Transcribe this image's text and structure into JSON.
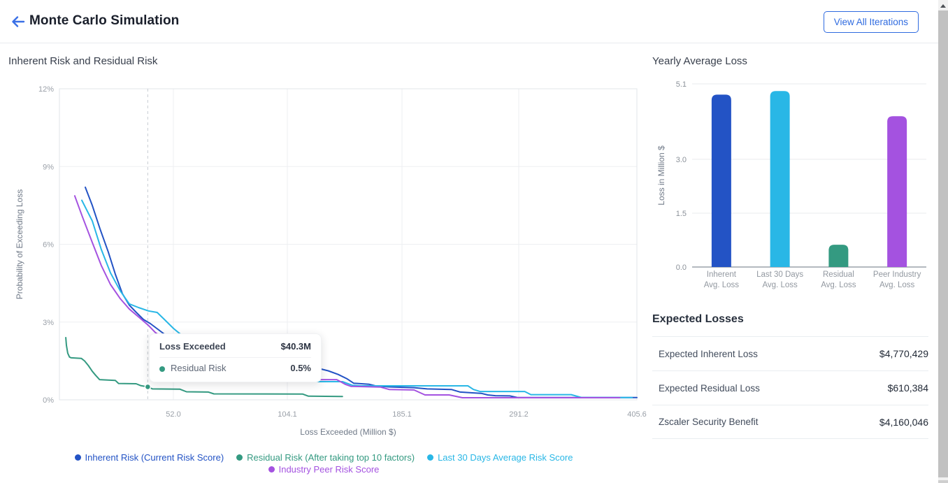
{
  "header": {
    "title": "Monte Carlo Simulation",
    "back_icon": "left-arrow-icon",
    "view_all_label": "View All Iterations"
  },
  "left_panel": {
    "title": "Inherent Risk and Residual Risk",
    "tooltip": {
      "title": "Loss Exceeded",
      "value": "$40.3M",
      "series_label": "Residual Risk",
      "series_value": "0.5%",
      "loss_million": 40.3,
      "probability_pct": 0.5
    }
  },
  "right_panel": {
    "bar_title": "Yearly Average Loss",
    "expected": {
      "title": "Expected Losses",
      "rows": [
        {
          "label": "Expected Inherent Loss",
          "value": "$4,770,429"
        },
        {
          "label": "Expected Residual Loss",
          "value": "$610,384"
        },
        {
          "label": "Zscaler Security Benefit",
          "value": "$4,160,046"
        }
      ]
    }
  },
  "colors": {
    "inherent": "#2353c5",
    "residual": "#349a81",
    "last30": "#29b7e6",
    "peer": "#a452e0",
    "accent_blue": "#2f6be0"
  },
  "chart_data": [
    {
      "type": "line",
      "title": "Inherent Risk and Residual Risk",
      "xlabel": "Loss Exceeded (Million $)",
      "ylabel": "Probability of Exceeding Loss",
      "x_ticks": [
        "52.0",
        "104.1",
        "185.1",
        "291.2",
        "405.6"
      ],
      "x_tick_values": [
        52.0,
        104.1,
        185.1,
        291.2,
        405.6
      ],
      "y_ticks": [
        "0%",
        "3%",
        "6%",
        "9%",
        "12%"
      ],
      "y_tick_values": [
        0,
        3,
        6,
        9,
        12
      ],
      "ylim": [
        0,
        12
      ],
      "grid": true,
      "legend_position": "bottom",
      "annotation": {
        "dashed_x": 40.3,
        "marker_x": 40.3,
        "marker_y": 0.5
      },
      "series": [
        {
          "name": "Inherent Risk (Current Risk Score)",
          "color": "#2353c5",
          "points": [
            [
              11.8,
              8.2
            ],
            [
              15,
              7.5
            ],
            [
              18.5,
              6.6
            ],
            [
              22.3,
              5.7
            ],
            [
              25.5,
              4.85
            ],
            [
              28.7,
              4.1
            ],
            [
              31.9,
              3.65
            ],
            [
              35.1,
              3.37
            ],
            [
              38.3,
              3.1
            ],
            [
              41.5,
              2.94
            ],
            [
              50,
              2.4
            ],
            [
              60,
              2.0
            ],
            [
              75,
              1.65
            ],
            [
              90,
              1.45
            ],
            [
              105,
              1.33
            ],
            [
              118,
              1.25
            ],
            [
              127,
              1.2
            ],
            [
              133,
              1.12
            ],
            [
              140,
              0.98
            ],
            [
              146,
              0.82
            ],
            [
              151,
              0.64
            ],
            [
              162,
              0.6
            ],
            [
              167,
              0.53
            ],
            [
              176,
              0.5
            ],
            [
              196,
              0.47
            ],
            [
              208,
              0.42
            ],
            [
              230,
              0.4
            ],
            [
              238,
              0.3
            ],
            [
              249,
              0.27
            ],
            [
              257,
              0.25
            ],
            [
              263,
              0.19
            ],
            [
              270,
              0.16
            ],
            [
              283,
              0.15
            ],
            [
              290,
              0.09
            ],
            [
              405.6,
              0.09
            ]
          ]
        },
        {
          "name": "Last 30 Days Average Risk Score",
          "color": "#29b7e6",
          "points": [
            [
              10.2,
              7.7
            ],
            [
              15,
              6.9
            ],
            [
              19.1,
              5.8
            ],
            [
              23.3,
              4.9
            ],
            [
              27.8,
              4.2
            ],
            [
              31.9,
              3.7
            ],
            [
              36.1,
              3.56
            ],
            [
              40.6,
              3.43
            ],
            [
              44.6,
              3.37
            ],
            [
              47.9,
              3.1
            ],
            [
              52.1,
              2.75
            ],
            [
              60,
              2.2
            ],
            [
              70,
              1.75
            ],
            [
              82,
              1.35
            ],
            [
              95,
              1.05
            ],
            [
              108,
              0.85
            ],
            [
              120,
              0.72
            ],
            [
              124,
              0.7
            ],
            [
              143,
              0.7
            ],
            [
              147,
              0.62
            ],
            [
              150,
              0.56
            ],
            [
              156,
              0.54
            ],
            [
              245,
              0.54
            ],
            [
              250,
              0.4
            ],
            [
              256,
              0.32
            ],
            [
              297,
              0.32
            ],
            [
              303,
              0.2
            ],
            [
              342,
              0.2
            ],
            [
              352,
              0.09
            ],
            [
              401,
              0.09
            ]
          ]
        },
        {
          "name": "Industry Peer Risk Score",
          "color": "#a452e0",
          "points": [
            [
              7,
              7.87
            ],
            [
              10.5,
              7.06
            ],
            [
              15,
              6.07
            ],
            [
              19.1,
              5.18
            ],
            [
              23.3,
              4.45
            ],
            [
              27.8,
              3.9
            ],
            [
              31.9,
              3.5
            ],
            [
              36.1,
              3.2
            ],
            [
              40.5,
              2.88
            ],
            [
              43.7,
              2.6
            ],
            [
              50,
              2.2
            ],
            [
              58,
              1.85
            ],
            [
              68,
              1.5
            ],
            [
              80,
              1.2
            ],
            [
              95,
              0.95
            ],
            [
              110,
              0.82
            ],
            [
              123,
              0.78
            ],
            [
              139,
              0.78
            ],
            [
              145,
              0.6
            ],
            [
              149,
              0.52
            ],
            [
              170,
              0.49
            ],
            [
              176,
              0.4
            ],
            [
              196,
              0.38
            ],
            [
              206,
              0.19
            ],
            [
              228,
              0.19
            ],
            [
              240,
              0.08
            ],
            [
              389,
              0.08
            ]
          ]
        },
        {
          "name": "Residual Risk (After taking top 10 factors)",
          "color": "#349a81",
          "points": [
            [
              2.9,
              2.4
            ],
            [
              3.2,
              2.1
            ],
            [
              3.8,
              1.8
            ],
            [
              4.6,
              1.65
            ],
            [
              5.4,
              1.62
            ],
            [
              10,
              1.6
            ],
            [
              11.5,
              1.5
            ],
            [
              13.2,
              1.32
            ],
            [
              15,
              1.1
            ],
            [
              16.5,
              0.95
            ],
            [
              18.3,
              0.78
            ],
            [
              25.5,
              0.75
            ],
            [
              27,
              0.63
            ],
            [
              35,
              0.62
            ],
            [
              37,
              0.55
            ],
            [
              40.3,
              0.5
            ],
            [
              42.5,
              0.42
            ],
            [
              55,
              0.41
            ],
            [
              58,
              0.31
            ],
            [
              68,
              0.3
            ],
            [
              70.5,
              0.23
            ],
            [
              115,
              0.22
            ],
            [
              119,
              0.14
            ],
            [
              143,
              0.13
            ]
          ]
        }
      ],
      "legend_order": [
        "Inherent Risk (Current Risk Score)",
        "Residual Risk (After taking top 10 factors)",
        "Last 30 Days Average Risk Score",
        "Industry Peer Risk Score"
      ]
    },
    {
      "type": "bar",
      "title": "Yearly Average Loss",
      "xlabel": "",
      "ylabel": "Loss in Million $",
      "categories": [
        "Inherent\nAvg. Loss",
        "Last 30 Days\nAvg. Loss",
        "Residual\nAvg. Loss",
        "Peer Industry\nAvg. Loss"
      ],
      "values": [
        4.8,
        4.9,
        0.62,
        4.2
      ],
      "colors": [
        "#2353c5",
        "#29b7e6",
        "#349a81",
        "#a452e0"
      ],
      "y_ticks": [
        "0.0",
        "1.5",
        "3.0",
        "5.1"
      ],
      "y_tick_values": [
        0,
        1.5,
        3.0,
        5.1
      ],
      "ylim": [
        0,
        5.1
      ],
      "grid": true
    }
  ]
}
